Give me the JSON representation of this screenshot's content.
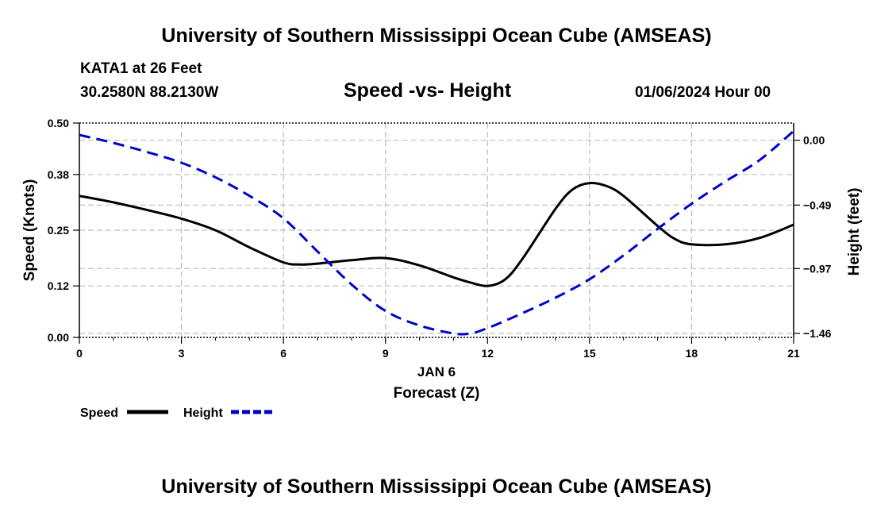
{
  "header": {
    "title": "University of Southern Mississippi Ocean Cube (AMSEAS)",
    "station": "KATA1 at 26 Feet",
    "coords": "30.2580N  88.2130W",
    "subtitle": "Speed -vs- Height",
    "datetime": "01/06/2024 Hour 00"
  },
  "footer": {
    "title": "University of Southern Mississippi Ocean Cube (AMSEAS)"
  },
  "chart_data": {
    "type": "line",
    "title": "Speed -vs- Height",
    "xlabel": "Forecast (Z)",
    "xlabel_date": "JAN 6",
    "ylabel_left": "Speed (Knots)",
    "ylabel_right": "Height (feet)",
    "xlim": [
      0,
      21
    ],
    "x_ticks": [
      0,
      3,
      6,
      9,
      12,
      15,
      18,
      21
    ],
    "y_left_lim": [
      0,
      0.5
    ],
    "y_left_ticks": [
      0.0,
      0.12,
      0.25,
      0.38,
      0.5
    ],
    "y_left_tick_labels": [
      "0.00",
      "0.12",
      "0.25",
      "0.38",
      "0.50"
    ],
    "y_right_lim": [
      -1.49,
      0.13
    ],
    "y_right_ticks": [
      -1.46,
      -0.97,
      -0.49,
      0.0
    ],
    "y_right_tick_labels": [
      "−1.46",
      "−0.97",
      "−0.49",
      "0.00"
    ],
    "grid": true,
    "legend": {
      "position": "bottom-left",
      "entries": [
        "Speed",
        "Height"
      ]
    },
    "series": [
      {
        "name": "Speed",
        "axis": "left",
        "color": "#000000",
        "style": "solid",
        "x": [
          0,
          1,
          2,
          3,
          4,
          5,
          6,
          6.5,
          7,
          8,
          9,
          10,
          11,
          11.5,
          12,
          12.5,
          13,
          14,
          14.5,
          15,
          15.5,
          16,
          17,
          17.5,
          18,
          19,
          20,
          21
        ],
        "values": [
          0.33,
          0.315,
          0.297,
          0.277,
          0.25,
          0.21,
          0.175,
          0.17,
          0.172,
          0.18,
          0.185,
          0.168,
          0.14,
          0.128,
          0.12,
          0.134,
          0.18,
          0.3,
          0.345,
          0.36,
          0.353,
          0.33,
          0.26,
          0.23,
          0.217,
          0.217,
          0.232,
          0.263
        ]
      },
      {
        "name": "Height",
        "axis": "right",
        "color": "#0000cc",
        "style": "dashed",
        "x": [
          0,
          1,
          2,
          3,
          4,
          5,
          6,
          7,
          8,
          9,
          10,
          11,
          11.5,
          12,
          13,
          14,
          15,
          16,
          17,
          18,
          19,
          20,
          21
        ],
        "values": [
          0.04,
          -0.02,
          -0.09,
          -0.17,
          -0.28,
          -0.42,
          -0.59,
          -0.84,
          -1.09,
          -1.29,
          -1.4,
          -1.46,
          -1.46,
          -1.42,
          -1.31,
          -1.19,
          -1.05,
          -0.87,
          -0.67,
          -0.48,
          -0.31,
          -0.15,
          0.07
        ]
      }
    ]
  }
}
